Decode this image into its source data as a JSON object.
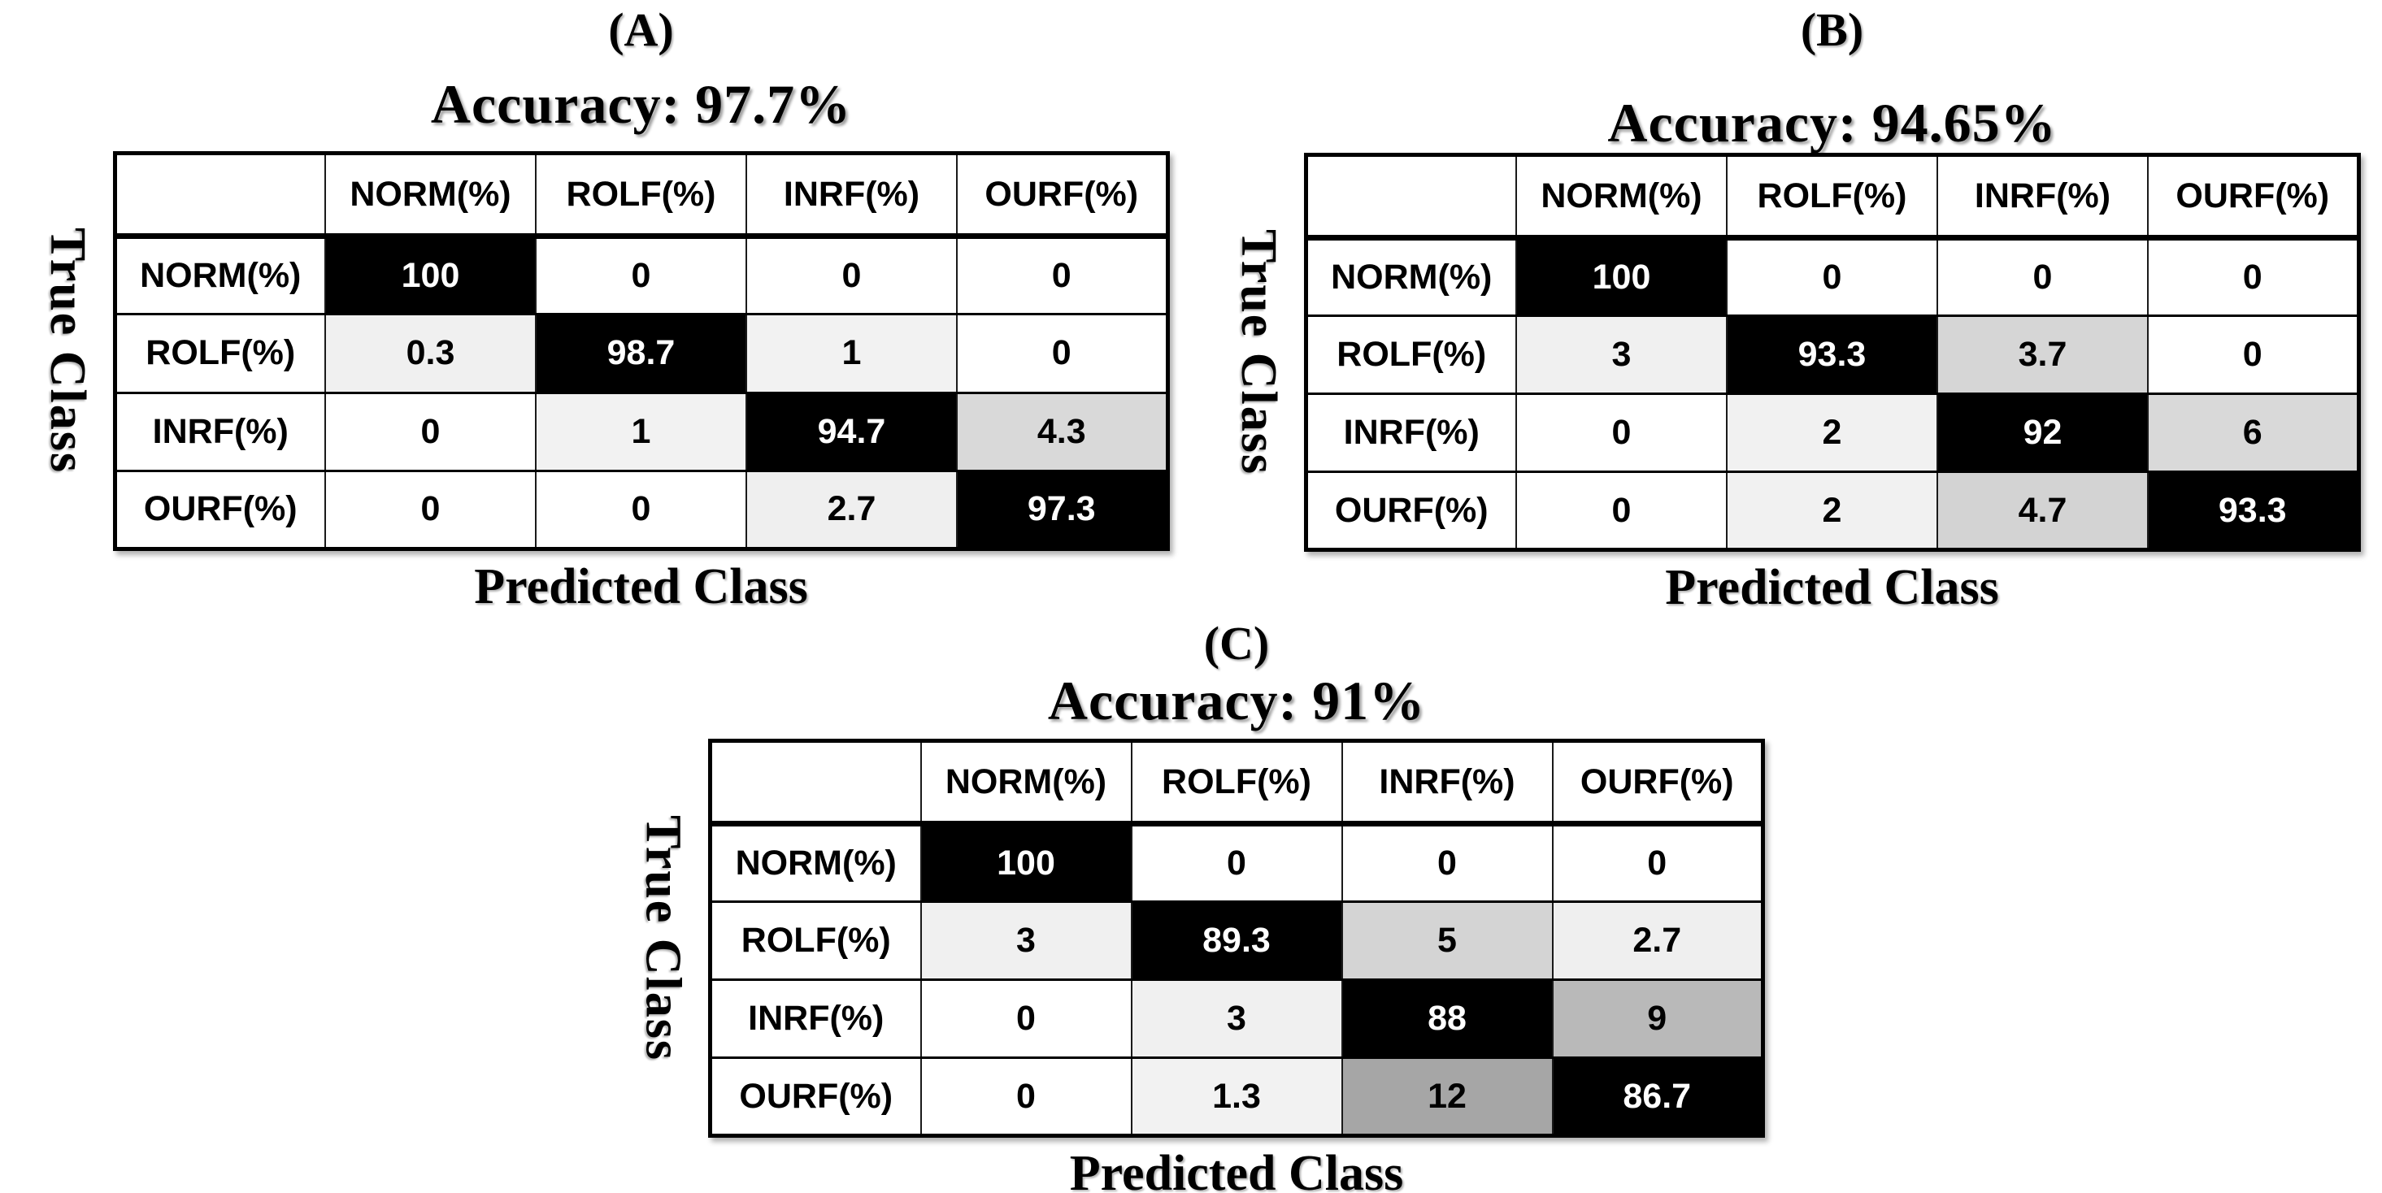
{
  "figure": {
    "background": "#ffffff",
    "border_color": "#000000",
    "description": "Three confusion-matrix heatmaps labeled (A), (B), (C)"
  },
  "text_colors": {
    "on_dark": "#ffffff",
    "on_light": "#000000"
  },
  "chart_data": [
    {
      "type": "heatmap",
      "panel_label": "(A)",
      "title": "Accuracy: 97.7%",
      "accuracy_percent": 97.7,
      "xlabel": "Predicted Class",
      "ylabel": "True Class",
      "x_categories": [
        "NORM(%)",
        "ROLF(%)",
        "INRF(%)",
        "OURF(%)"
      ],
      "y_categories": [
        "NORM(%)",
        "ROLF(%)",
        "INRF(%)",
        "OURF(%)"
      ],
      "values": [
        [
          100,
          0,
          0,
          0
        ],
        [
          0.3,
          98.7,
          1,
          0
        ],
        [
          0,
          1,
          94.7,
          4.3
        ],
        [
          0,
          0,
          2.7,
          97.3
        ]
      ],
      "cell_colors": [
        [
          "#000000",
          "#ffffff",
          "#ffffff",
          "#ffffff"
        ],
        [
          "#f0f0f0",
          "#000000",
          "#f2f2f2",
          "#ffffff"
        ],
        [
          "#ffffff",
          "#f2f2f2",
          "#000000",
          "#d9d9d9"
        ],
        [
          "#ffffff",
          "#ffffff",
          "#efefef",
          "#000000"
        ]
      ],
      "legend": "none",
      "grid": "on"
    },
    {
      "type": "heatmap",
      "panel_label": "(B)",
      "title": "Accuracy: 94.65%",
      "accuracy_percent": 94.65,
      "xlabel": "Predicted Class",
      "ylabel": "True Class",
      "x_categories": [
        "NORM(%)",
        "ROLF(%)",
        "INRF(%)",
        "OURF(%)"
      ],
      "y_categories": [
        "NORM(%)",
        "ROLF(%)",
        "INRF(%)",
        "OURF(%)"
      ],
      "values": [
        [
          100,
          0,
          0,
          0
        ],
        [
          3,
          93.3,
          3.7,
          0
        ],
        [
          0,
          2,
          92,
          6
        ],
        [
          0,
          2,
          4.7,
          93.3
        ]
      ],
      "cell_colors": [
        [
          "#000000",
          "#ffffff",
          "#ffffff",
          "#ffffff"
        ],
        [
          "#f0f0f0",
          "#000000",
          "#d6d6d6",
          "#ffffff"
        ],
        [
          "#ffffff",
          "#f1f1f1",
          "#000000",
          "#d9d9d9"
        ],
        [
          "#ffffff",
          "#f1f1f1",
          "#d3d3d3",
          "#000000"
        ]
      ],
      "legend": "none",
      "grid": "on"
    },
    {
      "type": "heatmap",
      "panel_label": "(C)",
      "title": "Accuracy: 91%",
      "accuracy_percent": 91,
      "xlabel": "Predicted Class",
      "ylabel": "True Class",
      "x_categories": [
        "NORM(%)",
        "ROLF(%)",
        "INRF(%)",
        "OURF(%)"
      ],
      "y_categories": [
        "NORM(%)",
        "ROLF(%)",
        "INRF(%)",
        "OURF(%)"
      ],
      "values": [
        [
          100,
          0,
          0,
          0
        ],
        [
          3,
          89.3,
          5,
          2.7
        ],
        [
          0,
          3,
          88,
          9
        ],
        [
          0,
          1.3,
          12,
          86.7
        ]
      ],
      "cell_colors": [
        [
          "#000000",
          "#ffffff",
          "#ffffff",
          "#ffffff"
        ],
        [
          "#f0f0f0",
          "#000000",
          "#d4d4d4",
          "#efefef"
        ],
        [
          "#ffffff",
          "#f0f0f0",
          "#000000",
          "#b9b9b9"
        ],
        [
          "#ffffff",
          "#f2f2f2",
          "#a6a6a6",
          "#000000"
        ]
      ],
      "legend": "none",
      "grid": "on"
    }
  ]
}
